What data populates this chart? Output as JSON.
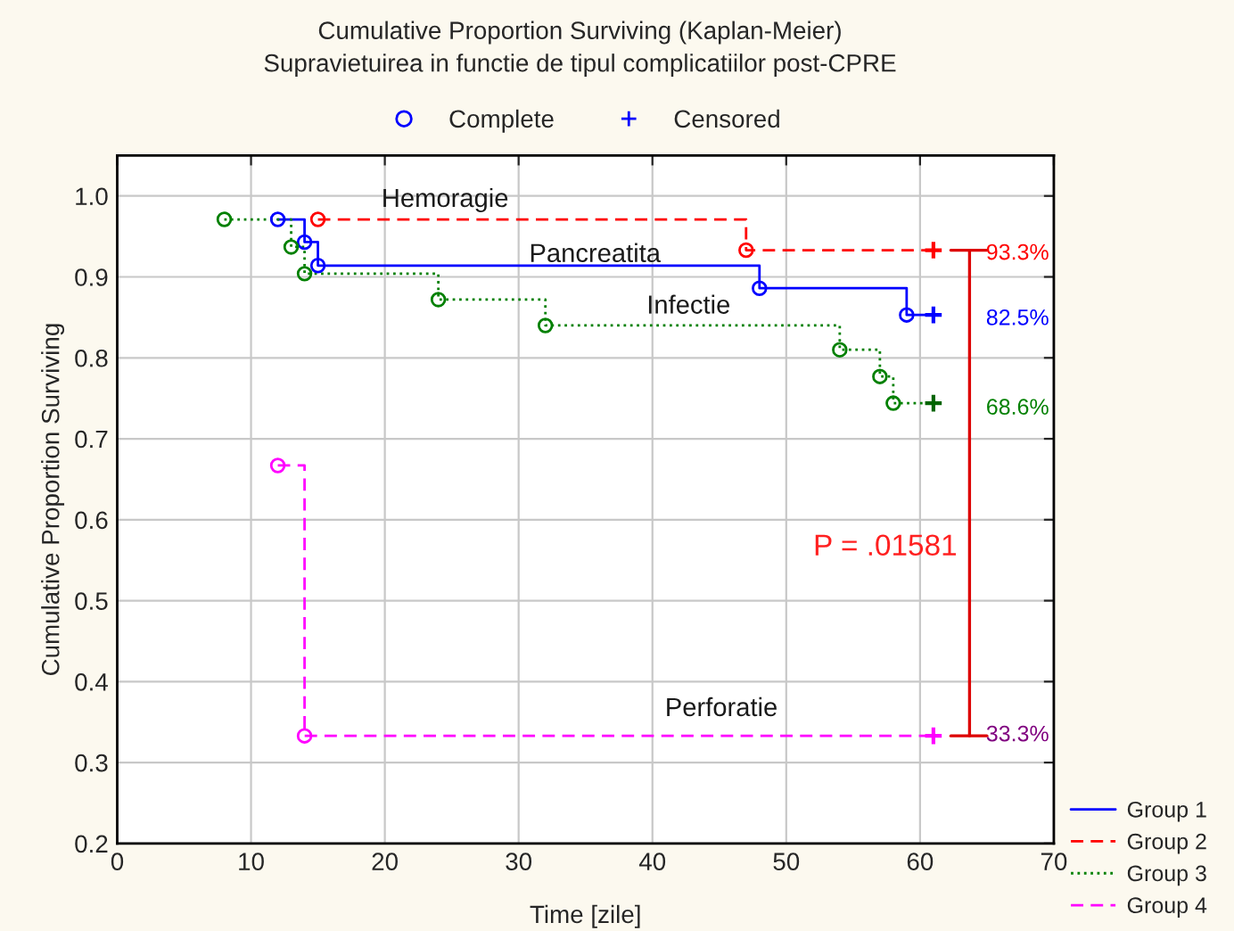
{
  "chart_data": {
    "type": "step",
    "title": "Cumulative Proportion Surviving (Kaplan-Meier)",
    "subtitle": "Supravietuirea in functie de tipul complicatiilor post-CPRE",
    "xlabel": "Time [zile]",
    "ylabel": "Cumulative Proportion Surviving",
    "xlim": [
      0,
      70
    ],
    "xticks": [
      0,
      10,
      20,
      30,
      40,
      50,
      60,
      70
    ],
    "ylim": [
      0.2,
      1.05
    ],
    "yticks": [
      0.2,
      0.3,
      0.4,
      0.5,
      0.6,
      0.7,
      0.8,
      0.9,
      {
        "value": 1.0,
        "label": "1.0"
      }
    ],
    "grid": true,
    "legend": "bottom right",
    "series": [
      {
        "name": "Group 1",
        "color": "#0000ff",
        "line_style": "solid",
        "x": [
          12,
          14,
          15,
          48,
          59,
          61
        ],
        "values": [
          0.971,
          0.943,
          0.914,
          0.886,
          0.853,
          0.853
        ]
      },
      {
        "name": "Group 2",
        "color": "#ff0000",
        "line_style": "dashed",
        "x": [
          15,
          47,
          61
        ],
        "values": [
          0.971,
          0.933,
          0.933
        ]
      },
      {
        "name": "Group 3",
        "color": "#008000",
        "line_style": "dotted",
        "x": [
          8,
          13,
          14,
          24,
          32,
          54,
          57,
          58,
          61
        ],
        "values": [
          0.971,
          0.937,
          0.904,
          0.872,
          0.84,
          0.81,
          0.777,
          0.744,
          0.744
        ]
      },
      {
        "name": "Group 4",
        "color": "#ff00ff",
        "line_style": "dashed",
        "x": [
          12,
          14,
          61
        ],
        "values": [
          0.667,
          0.333,
          0.333
        ]
      },
      {
        "name": "Complete",
        "type": "scatter",
        "marker": "circle",
        "color": "#0000ff",
        "x": [
          12,
          14,
          15,
          48,
          59,
          15,
          47,
          8,
          13,
          14,
          24,
          32,
          54,
          57,
          58,
          12,
          14
        ],
        "values": [
          0.971,
          0.943,
          0.914,
          0.886,
          0.853,
          0.971,
          0.933,
          0.971,
          0.937,
          0.904,
          0.872,
          0.84,
          0.81,
          0.777,
          0.744,
          0.667,
          0.333
        ],
        "colors": [
          "#0000ff",
          "#0000ff",
          "#0000ff",
          "#0000ff",
          "#0000ff",
          "#ff0000",
          "#ff0000",
          "#008000",
          "#008000",
          "#008000",
          "#008000",
          "#008000",
          "#008000",
          "#008000",
          "#008000",
          "#ff00ff",
          "#ff00ff"
        ]
      },
      {
        "name": "Censored",
        "type": "scatter",
        "marker": "cross",
        "color": "#0000ff",
        "x": [
          61,
          61,
          61,
          61
        ],
        "values": [
          0.853,
          0.933,
          0.744,
          0.333
        ],
        "colors": [
          "#0000ff",
          "#ff0000",
          "#006400",
          "#ff00ff"
        ]
      }
    ],
    "annotations": [
      "Hemoragie",
      "Pancreatita",
      "Infectie",
      "Perforatie",
      "93.3%",
      "82.5%",
      "68.6%",
      "33.3%",
      "P = .01581"
    ]
  }
}
